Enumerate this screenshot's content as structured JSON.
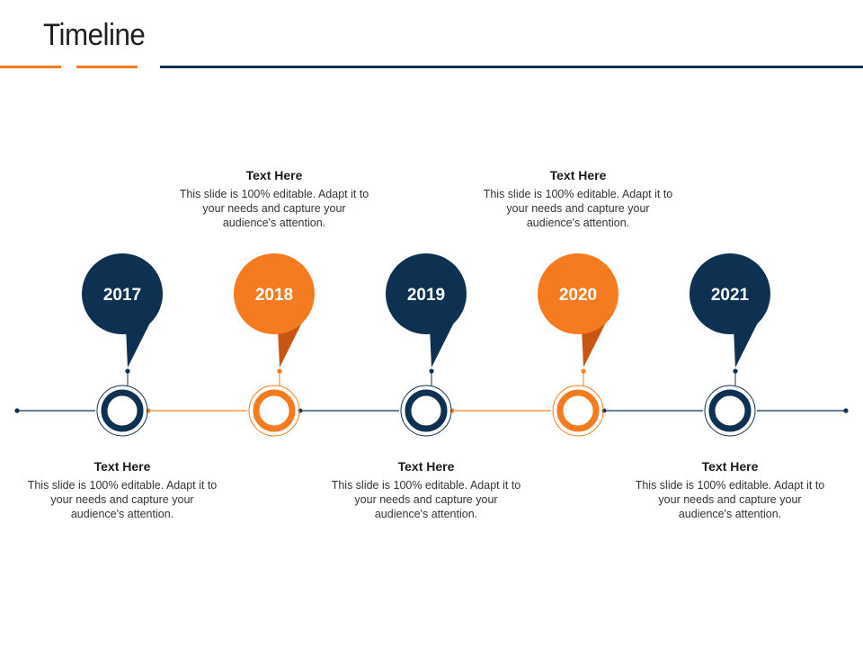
{
  "title": "Timeline",
  "colors": {
    "navy": "#0e3152",
    "orange": "#f47b20",
    "dark_orange": "#c85512",
    "line_navy": "#0e3152",
    "line_orange": "#f08a35"
  },
  "milestones": [
    {
      "year": "2017",
      "color": "navy",
      "text_position": "below",
      "heading": "Text Here",
      "body": "This slide is 100% editable. Adapt it to your needs and capture your audience's attention."
    },
    {
      "year": "2018",
      "color": "orange",
      "text_position": "above",
      "heading": "Text Here",
      "body": "This slide is 100% editable. Adapt it to your needs and capture your audience's attention."
    },
    {
      "year": "2019",
      "color": "navy",
      "text_position": "below",
      "heading": "Text Here",
      "body": "This slide is 100% editable. Adapt it to your needs and capture your audience's attention."
    },
    {
      "year": "2020",
      "color": "orange",
      "text_position": "above",
      "heading": "Text Here",
      "body": "This slide is 100% editable. Adapt it to your needs and capture your audience's attention."
    },
    {
      "year": "2021",
      "color": "navy",
      "text_position": "below",
      "heading": "Text Here",
      "body": "This slide is 100% editable. Adapt it to your needs and capture your audience's attention."
    }
  ]
}
